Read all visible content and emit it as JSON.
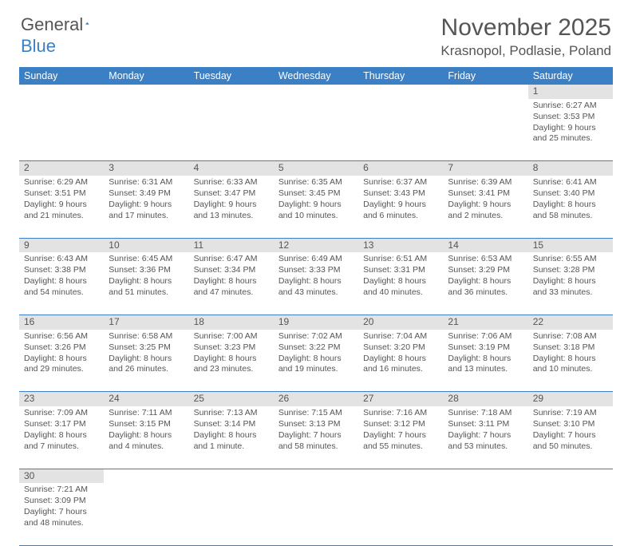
{
  "logo": {
    "text1": "General",
    "text2": "Blue"
  },
  "title": "November 2025",
  "location": "Krasnopol, Podlasie, Poland",
  "colors": {
    "header_bg": "#3b7fc4",
    "header_text": "#ffffff",
    "daynum_bg": "#e3e3e3",
    "text": "#555555",
    "rule": "#3b7fc4"
  },
  "day_headers": [
    "Sunday",
    "Monday",
    "Tuesday",
    "Wednesday",
    "Thursday",
    "Friday",
    "Saturday"
  ],
  "weeks": [
    [
      null,
      null,
      null,
      null,
      null,
      null,
      {
        "n": "1",
        "sr": "Sunrise: 6:27 AM",
        "ss": "Sunset: 3:53 PM",
        "dl": "Daylight: 9 hours and 25 minutes."
      }
    ],
    [
      {
        "n": "2",
        "sr": "Sunrise: 6:29 AM",
        "ss": "Sunset: 3:51 PM",
        "dl": "Daylight: 9 hours and 21 minutes."
      },
      {
        "n": "3",
        "sr": "Sunrise: 6:31 AM",
        "ss": "Sunset: 3:49 PM",
        "dl": "Daylight: 9 hours and 17 minutes."
      },
      {
        "n": "4",
        "sr": "Sunrise: 6:33 AM",
        "ss": "Sunset: 3:47 PM",
        "dl": "Daylight: 9 hours and 13 minutes."
      },
      {
        "n": "5",
        "sr": "Sunrise: 6:35 AM",
        "ss": "Sunset: 3:45 PM",
        "dl": "Daylight: 9 hours and 10 minutes."
      },
      {
        "n": "6",
        "sr": "Sunrise: 6:37 AM",
        "ss": "Sunset: 3:43 PM",
        "dl": "Daylight: 9 hours and 6 minutes."
      },
      {
        "n": "7",
        "sr": "Sunrise: 6:39 AM",
        "ss": "Sunset: 3:41 PM",
        "dl": "Daylight: 9 hours and 2 minutes."
      },
      {
        "n": "8",
        "sr": "Sunrise: 6:41 AM",
        "ss": "Sunset: 3:40 PM",
        "dl": "Daylight: 8 hours and 58 minutes."
      }
    ],
    [
      {
        "n": "9",
        "sr": "Sunrise: 6:43 AM",
        "ss": "Sunset: 3:38 PM",
        "dl": "Daylight: 8 hours and 54 minutes."
      },
      {
        "n": "10",
        "sr": "Sunrise: 6:45 AM",
        "ss": "Sunset: 3:36 PM",
        "dl": "Daylight: 8 hours and 51 minutes."
      },
      {
        "n": "11",
        "sr": "Sunrise: 6:47 AM",
        "ss": "Sunset: 3:34 PM",
        "dl": "Daylight: 8 hours and 47 minutes."
      },
      {
        "n": "12",
        "sr": "Sunrise: 6:49 AM",
        "ss": "Sunset: 3:33 PM",
        "dl": "Daylight: 8 hours and 43 minutes."
      },
      {
        "n": "13",
        "sr": "Sunrise: 6:51 AM",
        "ss": "Sunset: 3:31 PM",
        "dl": "Daylight: 8 hours and 40 minutes."
      },
      {
        "n": "14",
        "sr": "Sunrise: 6:53 AM",
        "ss": "Sunset: 3:29 PM",
        "dl": "Daylight: 8 hours and 36 minutes."
      },
      {
        "n": "15",
        "sr": "Sunrise: 6:55 AM",
        "ss": "Sunset: 3:28 PM",
        "dl": "Daylight: 8 hours and 33 minutes."
      }
    ],
    [
      {
        "n": "16",
        "sr": "Sunrise: 6:56 AM",
        "ss": "Sunset: 3:26 PM",
        "dl": "Daylight: 8 hours and 29 minutes."
      },
      {
        "n": "17",
        "sr": "Sunrise: 6:58 AM",
        "ss": "Sunset: 3:25 PM",
        "dl": "Daylight: 8 hours and 26 minutes."
      },
      {
        "n": "18",
        "sr": "Sunrise: 7:00 AM",
        "ss": "Sunset: 3:23 PM",
        "dl": "Daylight: 8 hours and 23 minutes."
      },
      {
        "n": "19",
        "sr": "Sunrise: 7:02 AM",
        "ss": "Sunset: 3:22 PM",
        "dl": "Daylight: 8 hours and 19 minutes."
      },
      {
        "n": "20",
        "sr": "Sunrise: 7:04 AM",
        "ss": "Sunset: 3:20 PM",
        "dl": "Daylight: 8 hours and 16 minutes."
      },
      {
        "n": "21",
        "sr": "Sunrise: 7:06 AM",
        "ss": "Sunset: 3:19 PM",
        "dl": "Daylight: 8 hours and 13 minutes."
      },
      {
        "n": "22",
        "sr": "Sunrise: 7:08 AM",
        "ss": "Sunset: 3:18 PM",
        "dl": "Daylight: 8 hours and 10 minutes."
      }
    ],
    [
      {
        "n": "23",
        "sr": "Sunrise: 7:09 AM",
        "ss": "Sunset: 3:17 PM",
        "dl": "Daylight: 8 hours and 7 minutes."
      },
      {
        "n": "24",
        "sr": "Sunrise: 7:11 AM",
        "ss": "Sunset: 3:15 PM",
        "dl": "Daylight: 8 hours and 4 minutes."
      },
      {
        "n": "25",
        "sr": "Sunrise: 7:13 AM",
        "ss": "Sunset: 3:14 PM",
        "dl": "Daylight: 8 hours and 1 minute."
      },
      {
        "n": "26",
        "sr": "Sunrise: 7:15 AM",
        "ss": "Sunset: 3:13 PM",
        "dl": "Daylight: 7 hours and 58 minutes."
      },
      {
        "n": "27",
        "sr": "Sunrise: 7:16 AM",
        "ss": "Sunset: 3:12 PM",
        "dl": "Daylight: 7 hours and 55 minutes."
      },
      {
        "n": "28",
        "sr": "Sunrise: 7:18 AM",
        "ss": "Sunset: 3:11 PM",
        "dl": "Daylight: 7 hours and 53 minutes."
      },
      {
        "n": "29",
        "sr": "Sunrise: 7:19 AM",
        "ss": "Sunset: 3:10 PM",
        "dl": "Daylight: 7 hours and 50 minutes."
      }
    ],
    [
      {
        "n": "30",
        "sr": "Sunrise: 7:21 AM",
        "ss": "Sunset: 3:09 PM",
        "dl": "Daylight: 7 hours and 48 minutes."
      },
      null,
      null,
      null,
      null,
      null,
      null
    ]
  ]
}
